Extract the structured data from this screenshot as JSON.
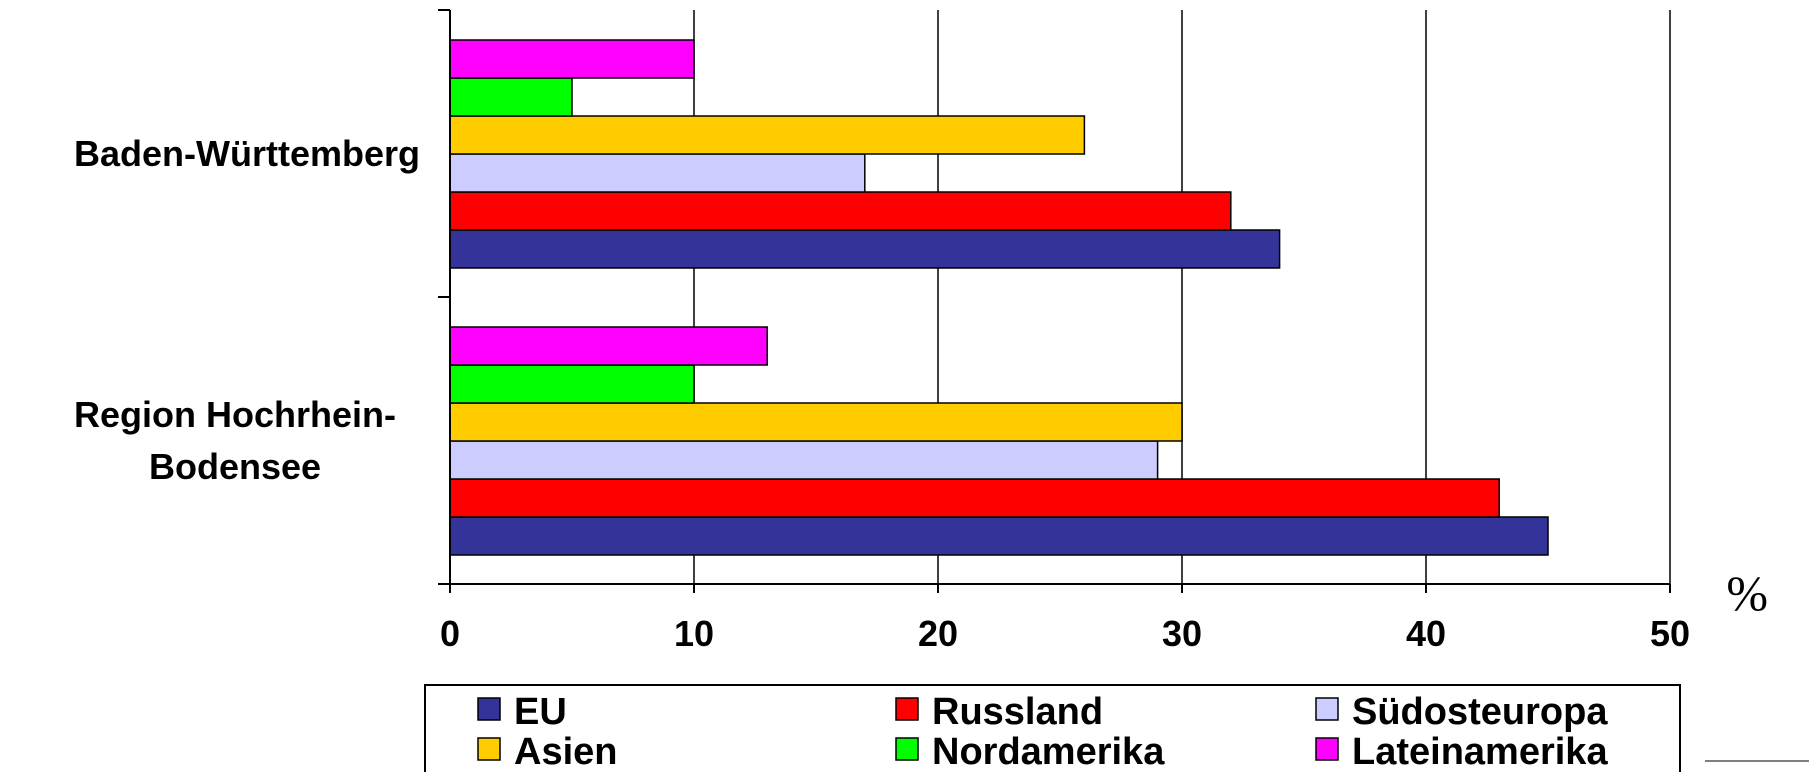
{
  "chart_data": {
    "type": "bar",
    "orientation": "horizontal",
    "categories": [
      "Baden-Württemberg",
      "Region Hochrhein-Bodensee"
    ],
    "category_lines": [
      [
        "Baden-Württemberg"
      ],
      [
        "Region Hochrhein-",
        "Bodensee"
      ]
    ],
    "series": [
      {
        "name": "EU",
        "color": "#333399",
        "values": [
          34,
          45
        ]
      },
      {
        "name": "Russland",
        "color": "#ff0000",
        "values": [
          32,
          43
        ]
      },
      {
        "name": "Südosteuropa",
        "color": "#ccccff",
        "values": [
          17,
          29
        ]
      },
      {
        "name": "Asien",
        "color": "#ffcc00",
        "values": [
          26,
          30
        ]
      },
      {
        "name": "Nordamerika",
        "color": "#00ff00",
        "values": [
          5,
          10
        ]
      },
      {
        "name": "Lateinamerika",
        "color": "#ff00ff",
        "values": [
          10,
          13
        ]
      }
    ],
    "xlim": [
      0,
      50
    ],
    "xticks": [
      0,
      10,
      20,
      30,
      40,
      50
    ],
    "unit_label": "%",
    "grid": "vertical",
    "legend_position": "bottom"
  }
}
